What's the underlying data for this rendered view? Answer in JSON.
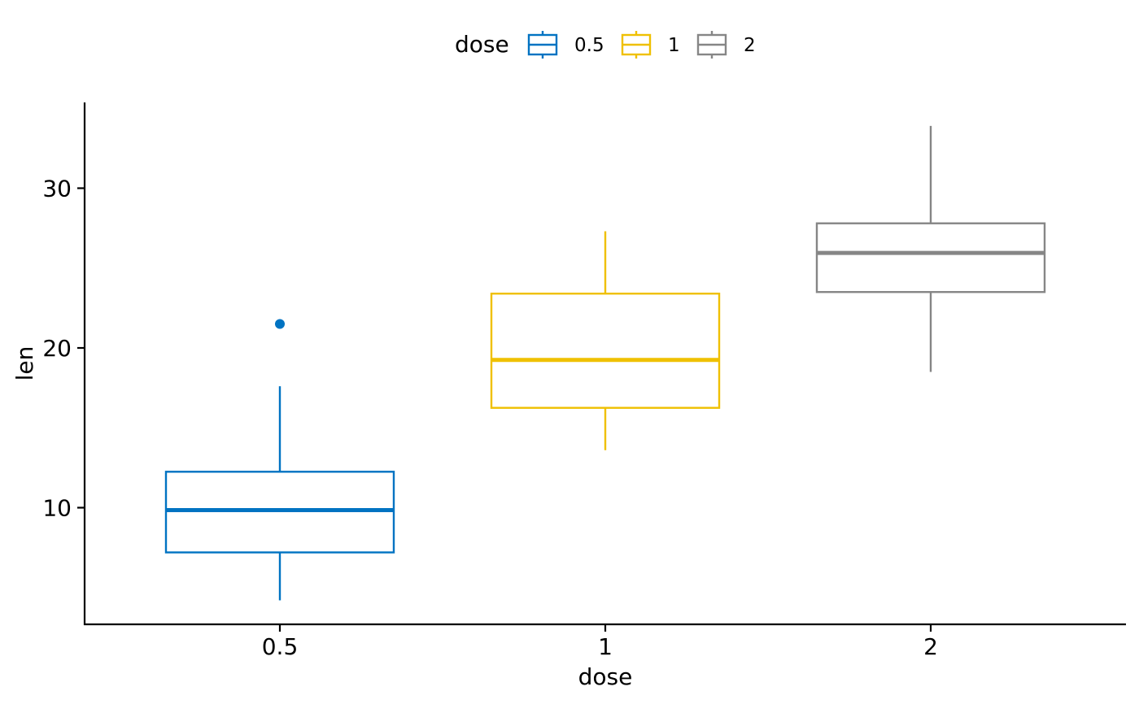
{
  "chart_data": {
    "type": "box",
    "xlabel": "dose",
    "ylabel": "len",
    "categories": [
      "0.5",
      "1",
      "2"
    ],
    "ylim": [
      3,
      35
    ],
    "yticks": [
      10,
      20,
      30
    ],
    "grid": false,
    "legend": {
      "title": "dose",
      "position": "top",
      "entries": [
        "0.5",
        "1",
        "2"
      ]
    },
    "series": [
      {
        "category": "0.5",
        "color": "#0073C2",
        "min": 4.2,
        "q1": 7.2,
        "median": 9.85,
        "q3": 12.25,
        "max": 17.6,
        "outliers": [
          21.5
        ]
      },
      {
        "category": "1",
        "color": "#EFC000",
        "min": 13.6,
        "q1": 16.25,
        "median": 19.25,
        "q3": 23.4,
        "max": 27.3,
        "outliers": []
      },
      {
        "category": "2",
        "color": "#868686",
        "min": 18.5,
        "q1": 23.5,
        "median": 25.95,
        "q3": 27.8,
        "max": 33.9,
        "outliers": []
      }
    ]
  }
}
